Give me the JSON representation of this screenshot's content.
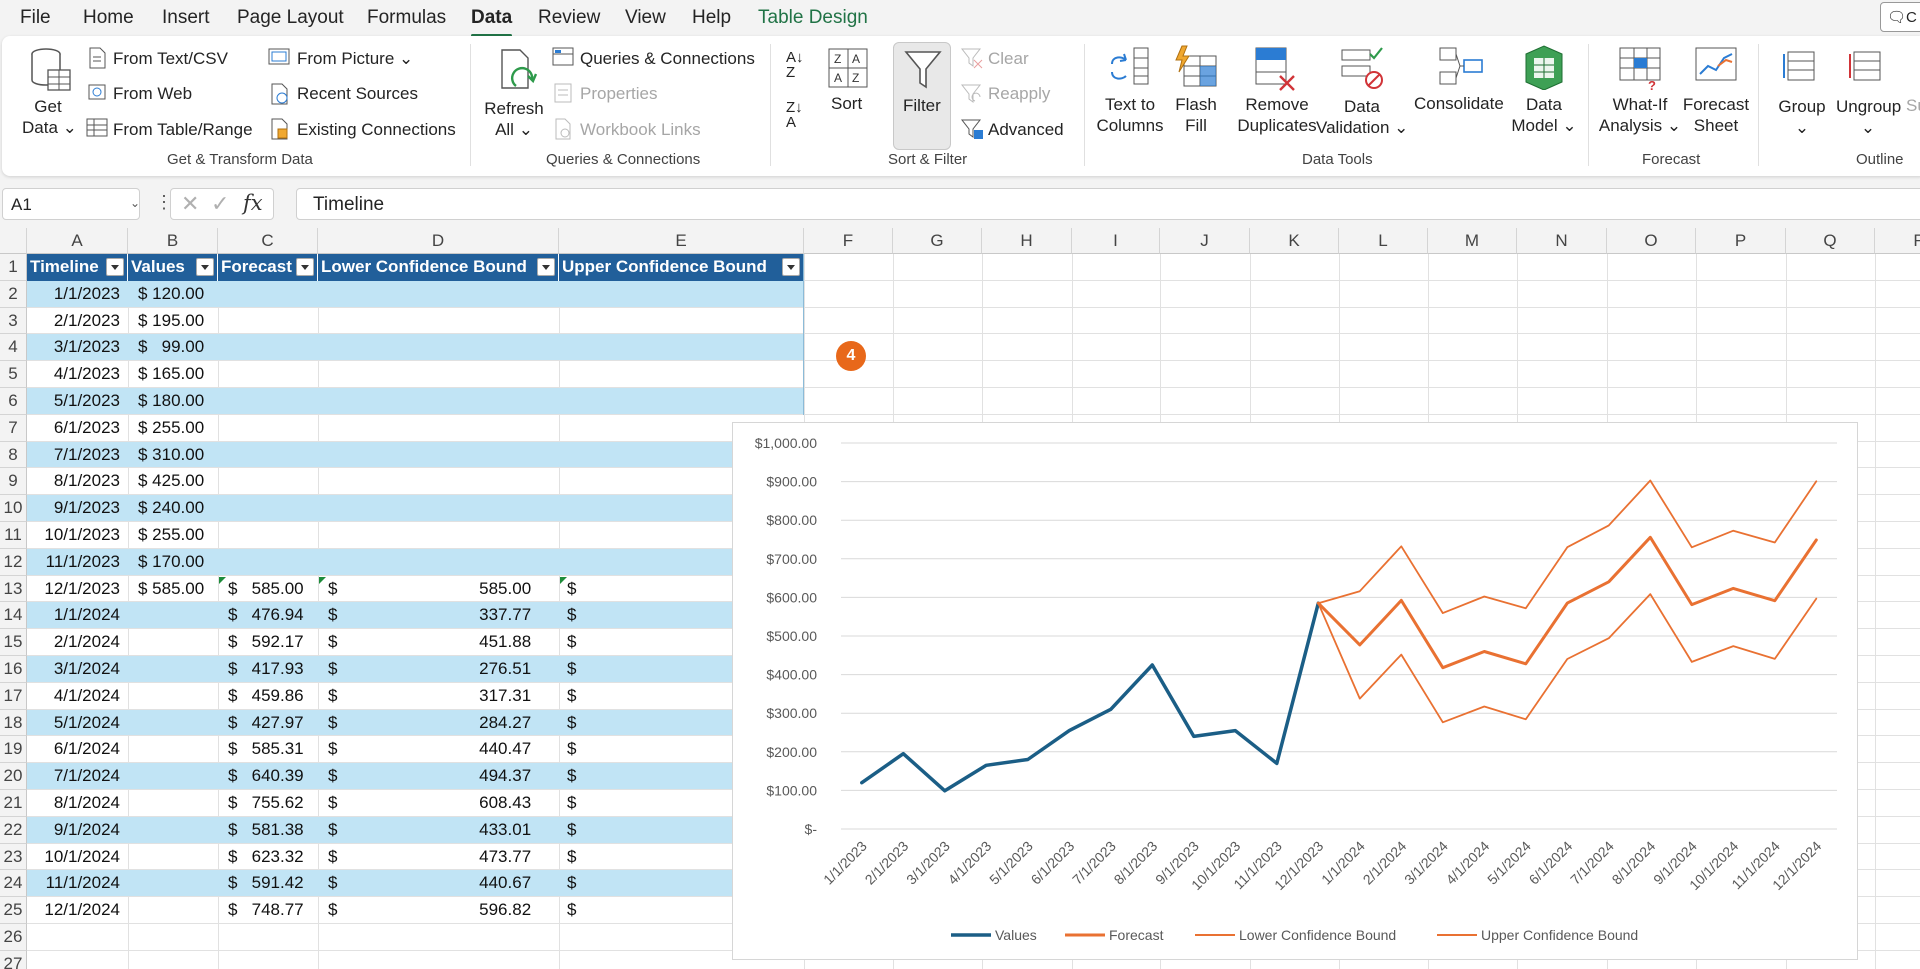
{
  "menu": {
    "tabs": [
      {
        "label": "File",
        "name": "tab-file",
        "x": 0
      },
      {
        "label": "Home",
        "name": "tab-home"
      },
      {
        "label": "Insert",
        "name": "tab-insert"
      },
      {
        "label": "Page Layout",
        "name": "tab-page-layout"
      },
      {
        "label": "Formulas",
        "name": "tab-formulas"
      },
      {
        "label": "Data",
        "name": "tab-data"
      },
      {
        "label": "Review",
        "name": "tab-review"
      },
      {
        "label": "View",
        "name": "tab-view"
      },
      {
        "label": "Help",
        "name": "tab-help"
      },
      {
        "label": "Table Design",
        "name": "tab-table-design"
      }
    ],
    "comments_label": "C"
  },
  "ribbon": {
    "get_data": "Get",
    "get_data2": "Data",
    "from_text_csv": "From Text/CSV",
    "from_web": "From Web",
    "from_table_range": "From Table/Range",
    "from_picture": "From Picture",
    "recent_sources": "Recent Sources",
    "existing_connections": "Existing Connections",
    "group_get_transform": "Get & Transform Data",
    "refresh": "Refresh",
    "refresh_all": "All",
    "queries_connections": "Queries & Connections",
    "properties": "Properties",
    "workbook_links": "Workbook Links",
    "group_queries": "Queries & Connections",
    "sort": "Sort",
    "filter": "Filter",
    "clear": "Clear",
    "reapply": "Reapply",
    "advanced": "Advanced",
    "group_sort_filter": "Sort & Filter",
    "text_to_columns_1": "Text to",
    "text_to_columns_2": "Columns",
    "flash_fill_1": "Flash",
    "flash_fill_2": "Fill",
    "remove_dup_1": "Remove",
    "remove_dup_2": "Duplicates",
    "data_validation_1": "Data",
    "data_validation_2": "Validation",
    "consolidate": "Consolidate",
    "data_model_1": "Data",
    "data_model_2": "Model",
    "group_data_tools": "Data Tools",
    "what_if_1": "What-If",
    "what_if_2": "Analysis",
    "forecast_sheet_1": "Forecast",
    "forecast_sheet_2": "Sheet",
    "group_forecast": "Forecast",
    "group_btn": "Group",
    "ungroup_btn": "Ungroup",
    "subtotal_btn": "Su",
    "group_outline": "Outline"
  },
  "formula_bar": {
    "name_box": "A1",
    "content": "Timeline"
  },
  "columns": [
    "A",
    "B",
    "C",
    "D",
    "E",
    "F",
    "G",
    "H",
    "I",
    "J",
    "K",
    "L",
    "M",
    "N",
    "O",
    "P",
    "Q",
    "R"
  ],
  "table": {
    "headers": [
      "Timeline",
      "Values",
      "Forecast",
      "Lower Confidence Bound",
      "Upper Confidence Bound"
    ],
    "rows": [
      [
        "1/1/2023",
        "$ 120.00",
        "",
        "",
        ""
      ],
      [
        "2/1/2023",
        "$ 195.00",
        "",
        "",
        ""
      ],
      [
        "3/1/2023",
        "$   99.00",
        "",
        "",
        ""
      ],
      [
        "4/1/2023",
        "$ 165.00",
        "",
        "",
        ""
      ],
      [
        "5/1/2023",
        "$ 180.00",
        "",
        "",
        ""
      ],
      [
        "6/1/2023",
        "$ 255.00",
        "",
        "",
        ""
      ],
      [
        "7/1/2023",
        "$ 310.00",
        "",
        "",
        ""
      ],
      [
        "8/1/2023",
        "$ 425.00",
        "",
        "",
        ""
      ],
      [
        "9/1/2023",
        "$ 240.00",
        "",
        "",
        ""
      ],
      [
        "10/1/2023",
        "$ 255.00",
        "",
        "",
        ""
      ],
      [
        "11/1/2023",
        "$ 170.00",
        "",
        "",
        ""
      ],
      [
        "12/1/2023",
        "$ 585.00",
        "$   585.00",
        "$                              585.00",
        "$"
      ],
      [
        "1/1/2024",
        "",
        "$   476.94",
        "$                              337.77",
        "$"
      ],
      [
        "2/1/2024",
        "",
        "$   592.17",
        "$                              451.88",
        "$"
      ],
      [
        "3/1/2024",
        "",
        "$   417.93",
        "$                              276.51",
        "$"
      ],
      [
        "4/1/2024",
        "",
        "$   459.86",
        "$                              317.31",
        "$"
      ],
      [
        "5/1/2024",
        "",
        "$   427.97",
        "$                              284.27",
        "$"
      ],
      [
        "6/1/2024",
        "",
        "$   585.31",
        "$                              440.47",
        "$"
      ],
      [
        "7/1/2024",
        "",
        "$   640.39",
        "$                              494.37",
        "$"
      ],
      [
        "8/1/2024",
        "",
        "$   755.62",
        "$                              608.43",
        "$"
      ],
      [
        "9/1/2024",
        "",
        "$   581.38",
        "$                              433.01",
        "$"
      ],
      [
        "10/1/2024",
        "",
        "$   623.32",
        "$                              473.77",
        "$"
      ],
      [
        "11/1/2024",
        "",
        "$   591.42",
        "$                              440.67",
        "$"
      ],
      [
        "12/1/2024",
        "",
        "$   748.77",
        "$                              596.82",
        "$"
      ]
    ]
  },
  "badge": "4",
  "chart_data": {
    "type": "line",
    "categories": [
      "1/1/2023",
      "2/1/2023",
      "3/1/2023",
      "4/1/2023",
      "5/1/2023",
      "6/1/2023",
      "7/1/2023",
      "8/1/2023",
      "9/1/2023",
      "10/1/2023",
      "11/1/2023",
      "12/1/2023",
      "1/1/2024",
      "2/1/2024",
      "3/1/2024",
      "4/1/2024",
      "5/1/2024",
      "6/1/2024",
      "7/1/2024",
      "8/1/2024",
      "9/1/2024",
      "10/1/2024",
      "11/1/2024",
      "12/1/2024"
    ],
    "series": [
      {
        "name": "Values",
        "color": "#1b5e86",
        "width": 3.5,
        "values": [
          120,
          195,
          99,
          165,
          180,
          255,
          310,
          425,
          240,
          255,
          170,
          585,
          null,
          null,
          null,
          null,
          null,
          null,
          null,
          null,
          null,
          null,
          null,
          null
        ]
      },
      {
        "name": "Forecast",
        "color": "#e97132",
        "width": 3,
        "values": [
          null,
          null,
          null,
          null,
          null,
          null,
          null,
          null,
          null,
          null,
          null,
          585,
          476.94,
          592.17,
          417.93,
          459.86,
          427.97,
          585.31,
          640.39,
          755.62,
          581.38,
          623.32,
          591.42,
          748.77
        ]
      },
      {
        "name": "Lower Confidence Bound",
        "color": "#e97132",
        "width": 1.8,
        "values": [
          null,
          null,
          null,
          null,
          null,
          null,
          null,
          null,
          null,
          null,
          null,
          585,
          337.77,
          451.88,
          276.51,
          317.31,
          284.27,
          440.47,
          494.37,
          608.43,
          433.01,
          473.77,
          440.67,
          596.82
        ]
      },
      {
        "name": "Upper Confidence Bound",
        "color": "#e97132",
        "width": 1.8,
        "values": [
          null,
          null,
          null,
          null,
          null,
          null,
          null,
          null,
          null,
          null,
          null,
          585,
          616.11,
          732.46,
          559.35,
          602.41,
          571.67,
          730.15,
          786.41,
          902.81,
          729.75,
          772.87,
          742.17,
          900.72
        ]
      }
    ],
    "yticks": [
      "$-",
      "$100.00",
      "$200.00",
      "$300.00",
      "$400.00",
      "$500.00",
      "$600.00",
      "$700.00",
      "$800.00",
      "$900.00",
      "$1,000.00"
    ],
    "ylim": [
      0,
      1000
    ],
    "grid": true,
    "legend": "bottom"
  }
}
